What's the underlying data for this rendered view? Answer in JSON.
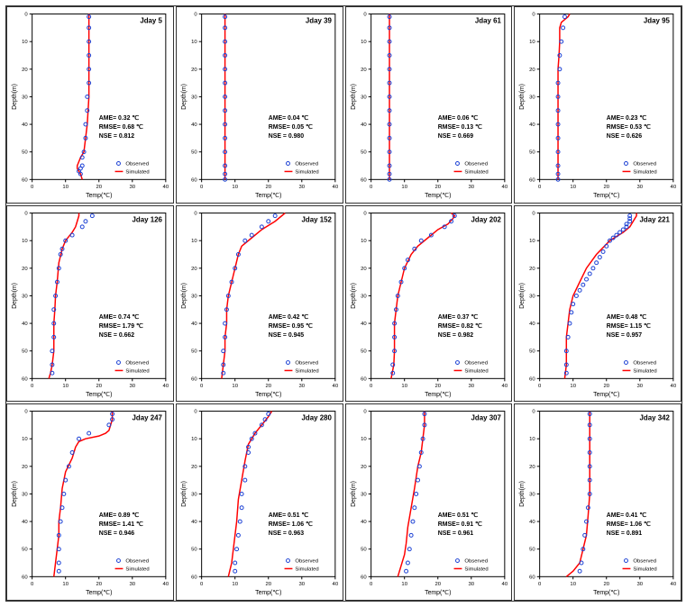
{
  "common": {
    "xlabel": "Temp(℃)",
    "ylabel": "Depth(m)",
    "xlim": [
      0,
      40
    ],
    "ylim": [
      60,
      0
    ],
    "xtick_step": 10,
    "ytick_step": 10,
    "marker_radius": 2,
    "line_width": 1.5,
    "obs_color": "#1a3fd4",
    "sim_color": "#ff0000",
    "background_color": "#ffffff",
    "title_fontsize": 8,
    "label_fontsize": 7,
    "tick_fontsize": 6,
    "legend_obs": "Observed",
    "legend_sim": "Simulated"
  },
  "panels": [
    {
      "title": "Jday 5",
      "ame": "AME= 0.32 ℃",
      "rmse": "RMSE= 0.68 ℃",
      "nse": "NSE = 0.812",
      "observed": [
        [
          17,
          1
        ],
        [
          17,
          5
        ],
        [
          17,
          10
        ],
        [
          17,
          15
        ],
        [
          17,
          20
        ],
        [
          17,
          25
        ],
        [
          16.5,
          30
        ],
        [
          16.5,
          35
        ],
        [
          16,
          40
        ],
        [
          16,
          45
        ],
        [
          15.5,
          50
        ],
        [
          15,
          52
        ],
        [
          15,
          55
        ],
        [
          14.5,
          56
        ],
        [
          14,
          57
        ],
        [
          14.5,
          58
        ]
      ],
      "simulated": [
        [
          17,
          0
        ],
        [
          17,
          10
        ],
        [
          17,
          20
        ],
        [
          17,
          30
        ],
        [
          16.5,
          40
        ],
        [
          16,
          45
        ],
        [
          15.5,
          50
        ],
        [
          14.5,
          52
        ],
        [
          13.5,
          55
        ],
        [
          13.5,
          56
        ],
        [
          14.5,
          58
        ],
        [
          15,
          60
        ]
      ]
    },
    {
      "title": "Jday 39",
      "ame": "AME= 0.04 ℃",
      "rmse": "RMSE= 0.05 ℃",
      "nse": "NSE = 0.980",
      "observed": [
        [
          7,
          1
        ],
        [
          7,
          5
        ],
        [
          7,
          10
        ],
        [
          7,
          15
        ],
        [
          7,
          20
        ],
        [
          7,
          25
        ],
        [
          7,
          30
        ],
        [
          7,
          35
        ],
        [
          7,
          40
        ],
        [
          7,
          45
        ],
        [
          7,
          50
        ],
        [
          7,
          55
        ],
        [
          7,
          58
        ],
        [
          7,
          60
        ]
      ],
      "simulated": [
        [
          7,
          0
        ],
        [
          7,
          10
        ],
        [
          7,
          20
        ],
        [
          7,
          30
        ],
        [
          7,
          40
        ],
        [
          7,
          50
        ],
        [
          7,
          60
        ]
      ]
    },
    {
      "title": "Jday 61",
      "ame": "AME= 0.06 ℃",
      "rmse": "RMSE= 0.13 ℃",
      "nse": "NSE = 0.669",
      "observed": [
        [
          5.5,
          1
        ],
        [
          5.5,
          5
        ],
        [
          5.5,
          10
        ],
        [
          5.5,
          15
        ],
        [
          5.5,
          20
        ],
        [
          5.5,
          25
        ],
        [
          5.5,
          30
        ],
        [
          5.5,
          35
        ],
        [
          5.5,
          40
        ],
        [
          5.5,
          45
        ],
        [
          5.5,
          50
        ],
        [
          5.5,
          55
        ],
        [
          5.5,
          58
        ],
        [
          5.5,
          60
        ]
      ],
      "simulated": [
        [
          5.5,
          0
        ],
        [
          5.5,
          10
        ],
        [
          5.5,
          20
        ],
        [
          5.5,
          30
        ],
        [
          5.5,
          40
        ],
        [
          5.5,
          50
        ],
        [
          5.5,
          60
        ]
      ]
    },
    {
      "title": "Jday 95",
      "ame": "AME= 0.23 ℃",
      "rmse": "RMSE= 0.53 ℃",
      "nse": "NSE = 0.626",
      "observed": [
        [
          7.5,
          1
        ],
        [
          7,
          5
        ],
        [
          6.5,
          10
        ],
        [
          6,
          15
        ],
        [
          6,
          20
        ],
        [
          5.5,
          25
        ],
        [
          5.5,
          30
        ],
        [
          5.5,
          35
        ],
        [
          5.5,
          40
        ],
        [
          5.5,
          45
        ],
        [
          5.5,
          50
        ],
        [
          5.5,
          55
        ],
        [
          5.5,
          58
        ],
        [
          5.5,
          60
        ]
      ],
      "simulated": [
        [
          9,
          0
        ],
        [
          8.5,
          1
        ],
        [
          7.5,
          2
        ],
        [
          6.5,
          3
        ],
        [
          6,
          5
        ],
        [
          6,
          10
        ],
        [
          5.8,
          15
        ],
        [
          5.5,
          20
        ],
        [
          5.5,
          30
        ],
        [
          5.5,
          40
        ],
        [
          5.5,
          50
        ],
        [
          5.5,
          60
        ]
      ]
    },
    {
      "title": "Jday 126",
      "ame": "AME= 0.74 ℃",
      "rmse": "RMSE= 1.79 ℃",
      "nse": "NSE = 0.662",
      "observed": [
        [
          18,
          1
        ],
        [
          16,
          3
        ],
        [
          15,
          5
        ],
        [
          12,
          8
        ],
        [
          10,
          10
        ],
        [
          9,
          13
        ],
        [
          8.5,
          15
        ],
        [
          8,
          20
        ],
        [
          7.5,
          25
        ],
        [
          7,
          30
        ],
        [
          6.5,
          35
        ],
        [
          6.5,
          40
        ],
        [
          6.5,
          45
        ],
        [
          6,
          50
        ],
        [
          6,
          55
        ],
        [
          6,
          58
        ]
      ],
      "simulated": [
        [
          14,
          0
        ],
        [
          14,
          1
        ],
        [
          13.5,
          3
        ],
        [
          13,
          5
        ],
        [
          12,
          7
        ],
        [
          10,
          10
        ],
        [
          9,
          13
        ],
        [
          8,
          18
        ],
        [
          7.5,
          25
        ],
        [
          7,
          30
        ],
        [
          6.8,
          35
        ],
        [
          6.5,
          40
        ],
        [
          6.5,
          45
        ],
        [
          6.5,
          50
        ],
        [
          6,
          55
        ],
        [
          5.5,
          58
        ],
        [
          5,
          60
        ]
      ]
    },
    {
      "title": "Jday 152",
      "ame": "AME= 0.42 ℃",
      "rmse": "RMSE= 0.95 ℃",
      "nse": "NSE = 0.945",
      "observed": [
        [
          22,
          1
        ],
        [
          20,
          3
        ],
        [
          18,
          5
        ],
        [
          15,
          8
        ],
        [
          13,
          10
        ],
        [
          11,
          15
        ],
        [
          10,
          20
        ],
        [
          9,
          25
        ],
        [
          8,
          30
        ],
        [
          7.5,
          35
        ],
        [
          7,
          40
        ],
        [
          7,
          45
        ],
        [
          6.5,
          50
        ],
        [
          6.5,
          55
        ],
        [
          6.5,
          58
        ]
      ],
      "simulated": [
        [
          25,
          0
        ],
        [
          24,
          1
        ],
        [
          22,
          3
        ],
        [
          18,
          6
        ],
        [
          15,
          9
        ],
        [
          12,
          12
        ],
        [
          11,
          15
        ],
        [
          10,
          20
        ],
        [
          9,
          25
        ],
        [
          8,
          30
        ],
        [
          7.5,
          35
        ],
        [
          7.5,
          40
        ],
        [
          7,
          45
        ],
        [
          7,
          50
        ],
        [
          6.5,
          55
        ],
        [
          6,
          60
        ]
      ]
    },
    {
      "title": "Jday 202",
      "ame": "AME= 0.37 ℃",
      "rmse": "RMSE= 0.82 ℃",
      "nse": "NSE = 0.982",
      "observed": [
        [
          25,
          1
        ],
        [
          24,
          3
        ],
        [
          22,
          5
        ],
        [
          18,
          8
        ],
        [
          15,
          10
        ],
        [
          13,
          13
        ],
        [
          11,
          17
        ],
        [
          10,
          20
        ],
        [
          9,
          25
        ],
        [
          8,
          30
        ],
        [
          7.5,
          35
        ],
        [
          7,
          40
        ],
        [
          7,
          45
        ],
        [
          7,
          50
        ],
        [
          6.5,
          55
        ],
        [
          6.5,
          58
        ]
      ],
      "simulated": [
        [
          24,
          0
        ],
        [
          25,
          1
        ],
        [
          24.5,
          2
        ],
        [
          23,
          4
        ],
        [
          20,
          6
        ],
        [
          17,
          9
        ],
        [
          14,
          12
        ],
        [
          12,
          15
        ],
        [
          10,
          20
        ],
        [
          9,
          25
        ],
        [
          8,
          30
        ],
        [
          7.5,
          35
        ],
        [
          7,
          40
        ],
        [
          7,
          45
        ],
        [
          7,
          50
        ],
        [
          6.8,
          55
        ],
        [
          6,
          60
        ]
      ]
    },
    {
      "title": "Jday 221",
      "ame": "AME= 0.48 ℃",
      "rmse": "RMSE= 1.15 ℃",
      "nse": "NSE = 0.957",
      "observed": [
        [
          27,
          1
        ],
        [
          27,
          2
        ],
        [
          27,
          3
        ],
        [
          26,
          4
        ],
        [
          26,
          5
        ],
        [
          25,
          6
        ],
        [
          24,
          7
        ],
        [
          23,
          8
        ],
        [
          22,
          9
        ],
        [
          21,
          10
        ],
        [
          20,
          12
        ],
        [
          19,
          14
        ],
        [
          18,
          16
        ],
        [
          17,
          18
        ],
        [
          16,
          20
        ],
        [
          15,
          22
        ],
        [
          14,
          24
        ],
        [
          13,
          26
        ],
        [
          12,
          28
        ],
        [
          11,
          30
        ],
        [
          10,
          33
        ],
        [
          9.5,
          36
        ],
        [
          9,
          40
        ],
        [
          8.5,
          45
        ],
        [
          8,
          50
        ],
        [
          8,
          55
        ],
        [
          8,
          58
        ]
      ],
      "simulated": [
        [
          29,
          0
        ],
        [
          29,
          1
        ],
        [
          28,
          3
        ],
        [
          27,
          5
        ],
        [
          25,
          7
        ],
        [
          21,
          10
        ],
        [
          17,
          15
        ],
        [
          14,
          20
        ],
        [
          12,
          25
        ],
        [
          10,
          30
        ],
        [
          9,
          35
        ],
        [
          8.5,
          40
        ],
        [
          8,
          45
        ],
        [
          8,
          50
        ],
        [
          8,
          55
        ],
        [
          7.5,
          60
        ]
      ]
    },
    {
      "title": "Jday 247",
      "ame": "AME= 0.89 ℃",
      "rmse": "RMSE= 1.41 ℃",
      "nse": "NSE = 0.946",
      "observed": [
        [
          24,
          1
        ],
        [
          24,
          3
        ],
        [
          23,
          5
        ],
        [
          17,
          8
        ],
        [
          14,
          10
        ],
        [
          12,
          15
        ],
        [
          11,
          20
        ],
        [
          10,
          25
        ],
        [
          9.5,
          30
        ],
        [
          9,
          35
        ],
        [
          8.5,
          40
        ],
        [
          8,
          45
        ],
        [
          8,
          50
        ],
        [
          8,
          55
        ],
        [
          8,
          58
        ]
      ],
      "simulated": [
        [
          24,
          0
        ],
        [
          24,
          3
        ],
        [
          23.5,
          5
        ],
        [
          23,
          7
        ],
        [
          22,
          8
        ],
        [
          20,
          9
        ],
        [
          16,
          10
        ],
        [
          14,
          11
        ],
        [
          13,
          13
        ],
        [
          12,
          17
        ],
        [
          10,
          22
        ],
        [
          9,
          28
        ],
        [
          8.5,
          35
        ],
        [
          8,
          40
        ],
        [
          8,
          45
        ],
        [
          7.5,
          50
        ],
        [
          7,
          55
        ],
        [
          6.5,
          60
        ]
      ]
    },
    {
      "title": "Jday 280",
      "ame": "AME= 0.51 ℃",
      "rmse": "RMSE= 1.06 ℃",
      "nse": "NSE = 0.963",
      "observed": [
        [
          20,
          1
        ],
        [
          19,
          3
        ],
        [
          18,
          5
        ],
        [
          16,
          8
        ],
        [
          15,
          10
        ],
        [
          14,
          13
        ],
        [
          14,
          15
        ],
        [
          13,
          20
        ],
        [
          13,
          25
        ],
        [
          12,
          30
        ],
        [
          12,
          35
        ],
        [
          11.5,
          40
        ],
        [
          11,
          45
        ],
        [
          10.5,
          50
        ],
        [
          10,
          55
        ],
        [
          10,
          58
        ]
      ],
      "simulated": [
        [
          21,
          0
        ],
        [
          20,
          2
        ],
        [
          18,
          5
        ],
        [
          16,
          8
        ],
        [
          14,
          12
        ],
        [
          13,
          18
        ],
        [
          12,
          25
        ],
        [
          11,
          32
        ],
        [
          10.5,
          40
        ],
        [
          10,
          45
        ],
        [
          9.5,
          50
        ],
        [
          9,
          55
        ],
        [
          8,
          60
        ]
      ]
    },
    {
      "title": "Jday 307",
      "ame": "AME= 0.51 ℃",
      "rmse": "RMSE= 0.91 ℃",
      "nse": "NSE = 0.961",
      "observed": [
        [
          16,
          1
        ],
        [
          16,
          5
        ],
        [
          15.5,
          10
        ],
        [
          15,
          15
        ],
        [
          14.5,
          20
        ],
        [
          14,
          25
        ],
        [
          13.5,
          30
        ],
        [
          13,
          35
        ],
        [
          12.5,
          40
        ],
        [
          12,
          45
        ],
        [
          11.5,
          50
        ],
        [
          11,
          55
        ],
        [
          10.5,
          58
        ]
      ],
      "simulated": [
        [
          16,
          0
        ],
        [
          16,
          5
        ],
        [
          15.5,
          10
        ],
        [
          15,
          15
        ],
        [
          14,
          20
        ],
        [
          13,
          28
        ],
        [
          12,
          35
        ],
        [
          11,
          42
        ],
        [
          10.5,
          48
        ],
        [
          10,
          52
        ],
        [
          9,
          56
        ],
        [
          8,
          60
        ]
      ]
    },
    {
      "title": "Jday 342",
      "ame": "AME= 0.41 ℃",
      "rmse": "RMSE= 1.06 ℃",
      "nse": "NSE = 0.891",
      "observed": [
        [
          15,
          1
        ],
        [
          15,
          5
        ],
        [
          15,
          10
        ],
        [
          15,
          15
        ],
        [
          15,
          20
        ],
        [
          15,
          25
        ],
        [
          15,
          30
        ],
        [
          14.5,
          35
        ],
        [
          14,
          40
        ],
        [
          13.5,
          45
        ],
        [
          13,
          50
        ],
        [
          12.5,
          55
        ],
        [
          12,
          58
        ]
      ],
      "simulated": [
        [
          15,
          0
        ],
        [
          15,
          10
        ],
        [
          15,
          20
        ],
        [
          15,
          30
        ],
        [
          14.5,
          38
        ],
        [
          14,
          45
        ],
        [
          13,
          50
        ],
        [
          12,
          55
        ],
        [
          10,
          58
        ],
        [
          8,
          60
        ]
      ]
    }
  ]
}
